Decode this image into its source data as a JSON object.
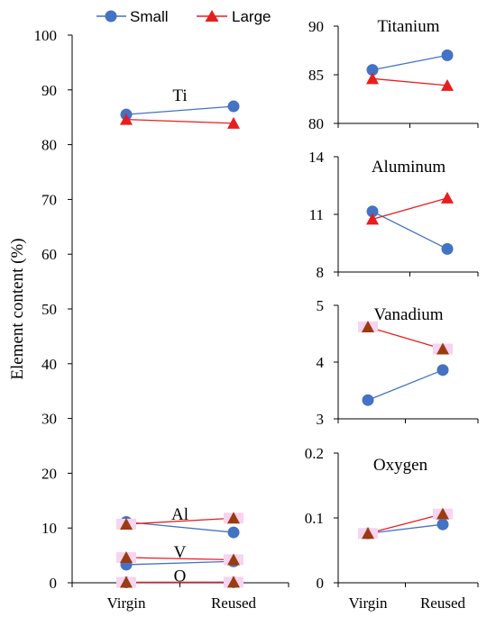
{
  "colors": {
    "small": "#4472C4",
    "large": "#E81E1E",
    "large_marker": "#9C3A10"
  },
  "legend": [
    {
      "name": "Small",
      "marker": "circle"
    },
    {
      "name": "Large",
      "marker": "triangle"
    }
  ],
  "chart_data": [
    {
      "type": "line",
      "id": "main",
      "title": "",
      "ylabel": "Element content (%)",
      "ylim": [
        0,
        100
      ],
      "yticks": [
        0,
        10,
        20,
        30,
        40,
        50,
        60,
        70,
        80,
        90,
        100
      ],
      "categories": [
        "Virgin",
        "Reused"
      ],
      "series": [
        {
          "name": "Small",
          "element": "Ti",
          "values": [
            85.5,
            87.0
          ]
        },
        {
          "name": "Large",
          "element": "Ti",
          "values": [
            84.6,
            83.9
          ]
        },
        {
          "name": "Small",
          "element": "Al",
          "values": [
            11.1,
            9.2
          ]
        },
        {
          "name": "Large",
          "element": "Al",
          "values": [
            10.7,
            11.8
          ]
        },
        {
          "name": "Small",
          "element": "V",
          "values": [
            3.3,
            3.9
          ]
        },
        {
          "name": "Large",
          "element": "V",
          "values": [
            4.6,
            4.2
          ]
        },
        {
          "name": "Small",
          "element": "O",
          "values": [
            0.08,
            0.09
          ]
        },
        {
          "name": "Large",
          "element": "O",
          "values": [
            0.08,
            0.1
          ]
        }
      ],
      "annotations": [
        {
          "text": "Ti",
          "x": 0.5,
          "y": 89
        },
        {
          "text": "Al",
          "x": 0.5,
          "y": 12.5
        },
        {
          "text": "V",
          "x": 0.5,
          "y": 5.6
        },
        {
          "text": "O",
          "x": 0.5,
          "y": 1.2
        }
      ]
    },
    {
      "type": "line",
      "id": "titanium",
      "title": "Titanium",
      "ylim": [
        80,
        90
      ],
      "yticks": [
        80,
        85,
        90
      ],
      "categories": [
        "Virgin",
        "Reused"
      ],
      "series": [
        {
          "name": "Small",
          "values": [
            85.5,
            87.0
          ]
        },
        {
          "name": "Large",
          "values": [
            84.6,
            83.9
          ]
        }
      ]
    },
    {
      "type": "line",
      "id": "aluminum",
      "title": "Aluminum",
      "ylim": [
        8,
        14
      ],
      "yticks": [
        8,
        11,
        14
      ],
      "categories": [
        "Virgin",
        "Reused"
      ],
      "series": [
        {
          "name": "Small",
          "values": [
            11.15,
            9.2
          ]
        },
        {
          "name": "Large",
          "values": [
            10.75,
            11.85
          ]
        }
      ]
    },
    {
      "type": "line",
      "id": "vanadium",
      "title": "Vanadium",
      "ylim": [
        3,
        5
      ],
      "yticks": [
        3,
        4,
        5
      ],
      "categories": [
        "Virgin",
        "Reused"
      ],
      "series": [
        {
          "name": "Small",
          "values": [
            3.33,
            3.86
          ]
        },
        {
          "name": "Large",
          "values": [
            4.62,
            4.23
          ]
        }
      ]
    },
    {
      "type": "line",
      "id": "oxygen",
      "title": "Oxygen",
      "ylim": [
        0,
        0.2
      ],
      "yticks": [
        "0",
        "0.1",
        "0.2"
      ],
      "categories": [
        "Virgin",
        "Reused"
      ],
      "series": [
        {
          "name": "Small",
          "values": [
            0.076,
            0.09
          ]
        },
        {
          "name": "Large",
          "values": [
            0.076,
            0.106
          ]
        }
      ]
    }
  ]
}
